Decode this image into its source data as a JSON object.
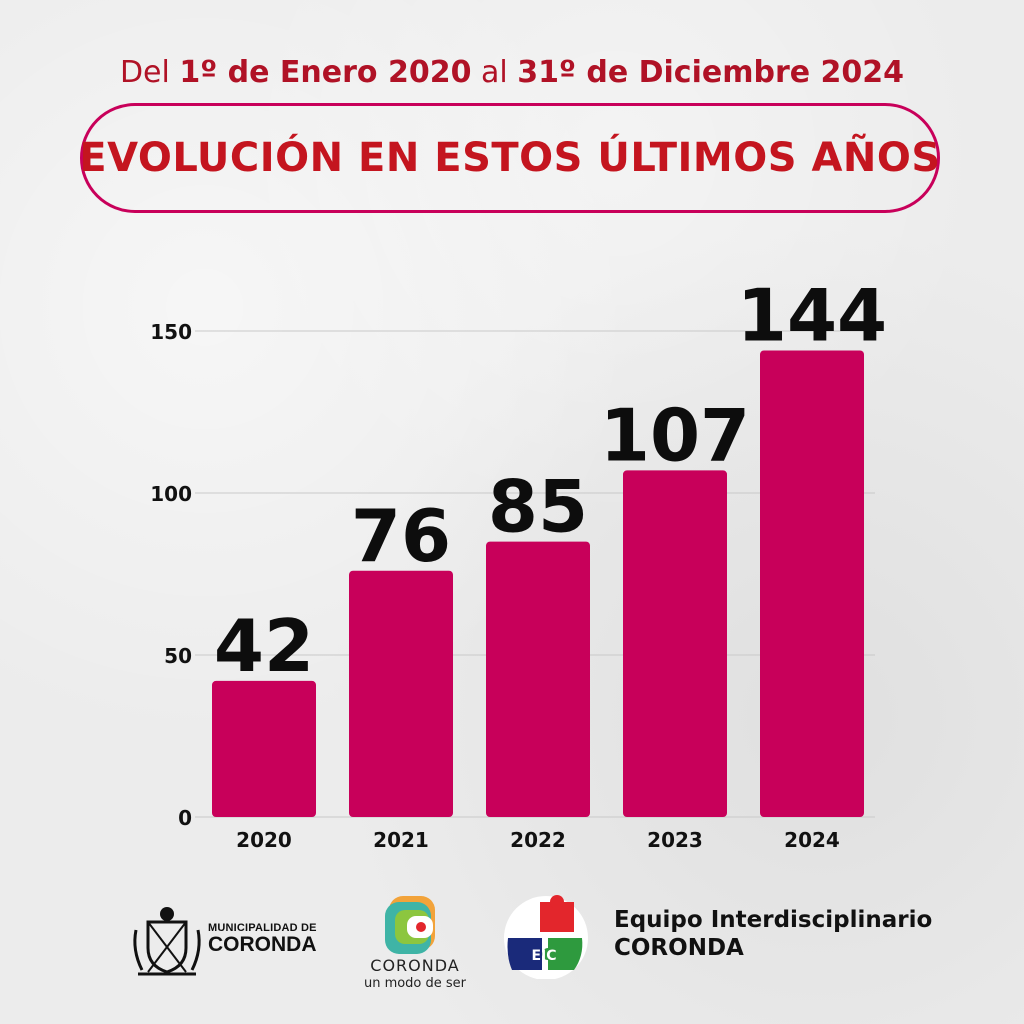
{
  "header": {
    "subtitle_parts": [
      "Del ",
      "1º de Enero 2020",
      " al ",
      "31º de Diciembre 2024"
    ],
    "title": "EVOLUCIÓN EN ESTOS ÚLTIMOS AÑOS"
  },
  "chart_data": {
    "type": "bar",
    "categories": [
      "2020",
      "2021",
      "2022",
      "2023",
      "2024"
    ],
    "values": [
      42,
      76,
      85,
      107,
      144
    ],
    "data_labels": [
      "42",
      "76",
      "85",
      "107",
      "144"
    ],
    "y_ticks": [
      0,
      50,
      100,
      150
    ],
    "ylim": [
      0,
      150
    ],
    "grid": true,
    "bar_color": "#c8005a",
    "title": "",
    "xlabel": "",
    "ylabel": ""
  },
  "footer": {
    "muni_line1": "MUNICIPALIDAD DE",
    "muni_line2": "CORONDA",
    "coronda_name": "CORONDA",
    "coronda_tag": "un modo de ser",
    "eic_line1": "Equipo Interdisciplinario",
    "eic_line2": "CORONDA",
    "eic_badge": "EIC"
  },
  "colors": {
    "accent": "#c8005a",
    "title_red": "#c4151f",
    "subtitle_red": "#b01226"
  }
}
